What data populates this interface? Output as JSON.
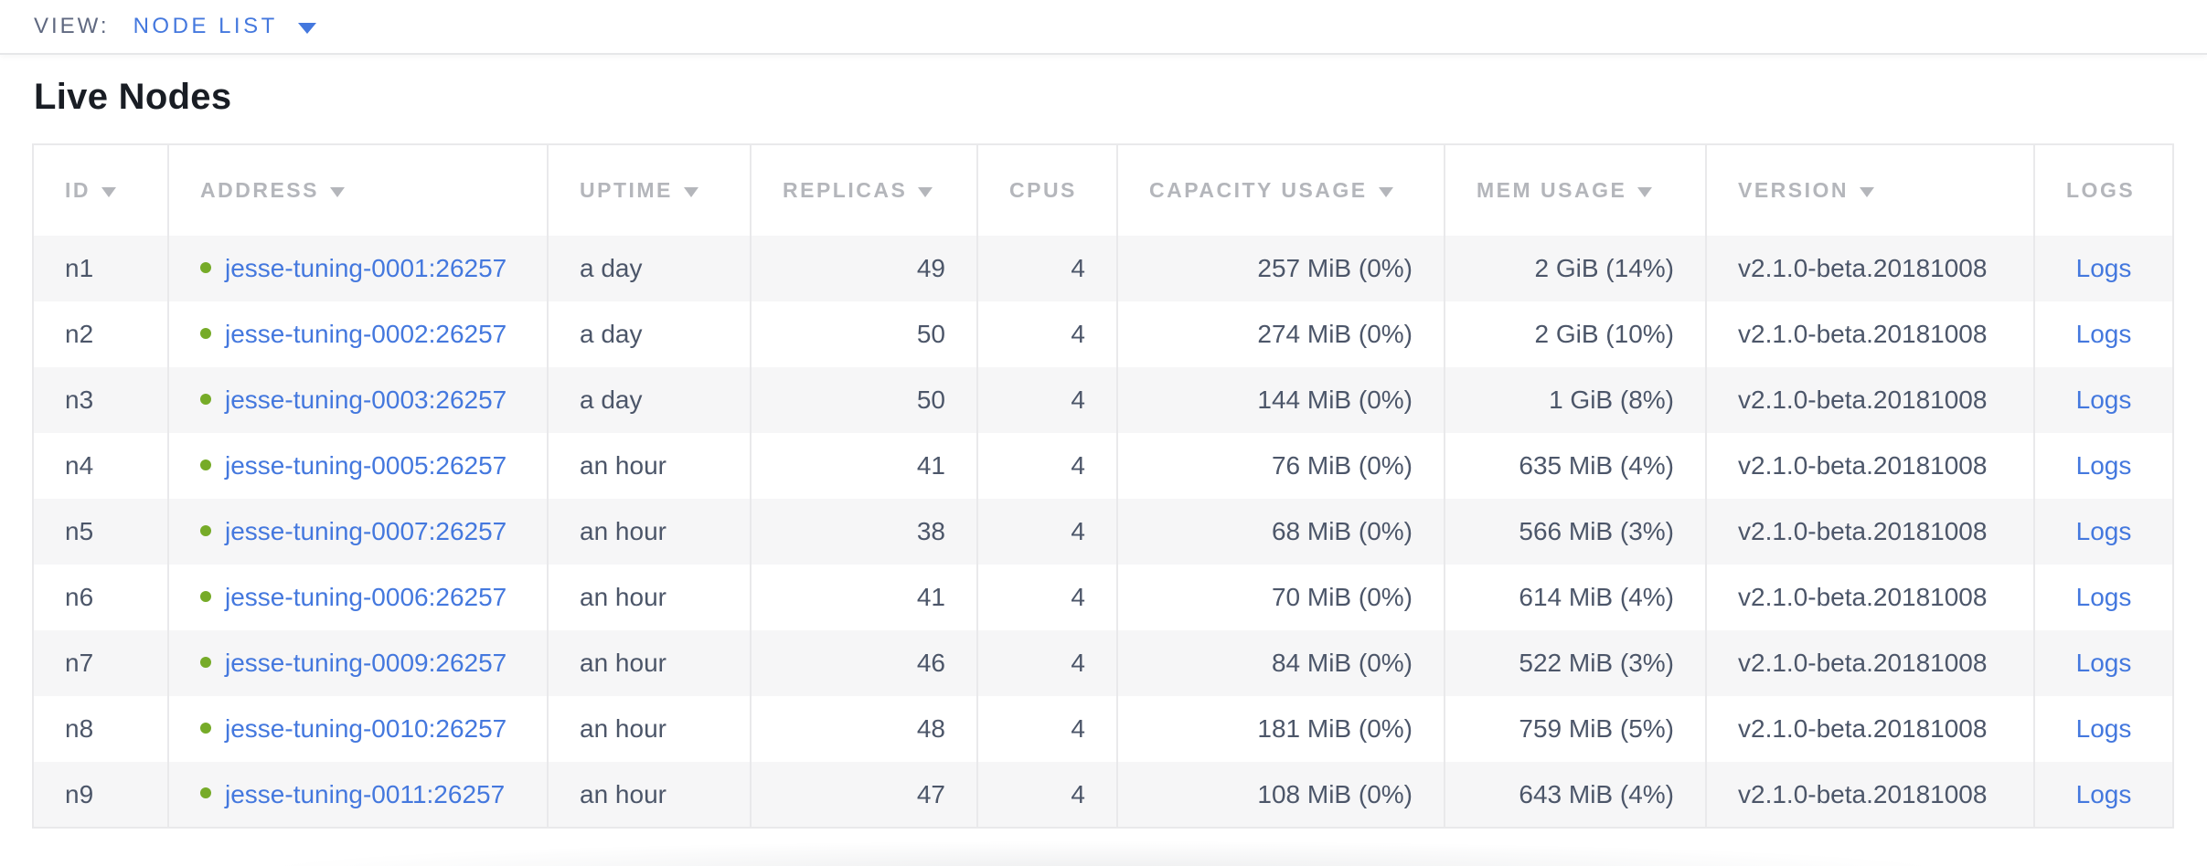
{
  "view_bar": {
    "label": "VIEW:",
    "selected": "NODE LIST"
  },
  "page": {
    "title": "Live Nodes"
  },
  "table": {
    "columns": [
      {
        "key": "id",
        "label": "ID",
        "sortable": true,
        "align": "left"
      },
      {
        "key": "address",
        "label": "ADDRESS",
        "sortable": true,
        "align": "left"
      },
      {
        "key": "uptime",
        "label": "UPTIME",
        "sortable": true,
        "align": "left"
      },
      {
        "key": "replicas",
        "label": "REPLICAS",
        "sortable": true,
        "align": "right"
      },
      {
        "key": "cpus",
        "label": "CPUS",
        "sortable": false,
        "align": "right"
      },
      {
        "key": "capacity_usage",
        "label": "CAPACITY USAGE",
        "sortable": true,
        "align": "right"
      },
      {
        "key": "mem_usage",
        "label": "MEM USAGE",
        "sortable": true,
        "align": "right"
      },
      {
        "key": "version",
        "label": "VERSION",
        "sortable": true,
        "align": "left"
      },
      {
        "key": "logs",
        "label": "LOGS",
        "sortable": false,
        "align": "center"
      }
    ],
    "rows": [
      {
        "id": "n1",
        "address": "jesse-tuning-0001:26257",
        "uptime": "a day",
        "replicas": "49",
        "cpus": "4",
        "capacity_usage": "257 MiB (0%)",
        "mem_usage": "2 GiB (14%)",
        "version": "v2.1.0-beta.20181008",
        "logs": "Logs"
      },
      {
        "id": "n2",
        "address": "jesse-tuning-0002:26257",
        "uptime": "a day",
        "replicas": "50",
        "cpus": "4",
        "capacity_usage": "274 MiB (0%)",
        "mem_usage": "2 GiB (10%)",
        "version": "v2.1.0-beta.20181008",
        "logs": "Logs"
      },
      {
        "id": "n3",
        "address": "jesse-tuning-0003:26257",
        "uptime": "a day",
        "replicas": "50",
        "cpus": "4",
        "capacity_usage": "144 MiB (0%)",
        "mem_usage": "1 GiB (8%)",
        "version": "v2.1.0-beta.20181008",
        "logs": "Logs"
      },
      {
        "id": "n4",
        "address": "jesse-tuning-0005:26257",
        "uptime": "an hour",
        "replicas": "41",
        "cpus": "4",
        "capacity_usage": "76 MiB (0%)",
        "mem_usage": "635 MiB (4%)",
        "version": "v2.1.0-beta.20181008",
        "logs": "Logs"
      },
      {
        "id": "n5",
        "address": "jesse-tuning-0007:26257",
        "uptime": "an hour",
        "replicas": "38",
        "cpus": "4",
        "capacity_usage": "68 MiB (0%)",
        "mem_usage": "566 MiB (3%)",
        "version": "v2.1.0-beta.20181008",
        "logs": "Logs"
      },
      {
        "id": "n6",
        "address": "jesse-tuning-0006:26257",
        "uptime": "an hour",
        "replicas": "41",
        "cpus": "4",
        "capacity_usage": "70 MiB (0%)",
        "mem_usage": "614 MiB (4%)",
        "version": "v2.1.0-beta.20181008",
        "logs": "Logs"
      },
      {
        "id": "n7",
        "address": "jesse-tuning-0009:26257",
        "uptime": "an hour",
        "replicas": "46",
        "cpus": "4",
        "capacity_usage": "84 MiB (0%)",
        "mem_usage": "522 MiB (3%)",
        "version": "v2.1.0-beta.20181008",
        "logs": "Logs"
      },
      {
        "id": "n8",
        "address": "jesse-tuning-0010:26257",
        "uptime": "an hour",
        "replicas": "48",
        "cpus": "4",
        "capacity_usage": "181 MiB (0%)",
        "mem_usage": "759 MiB (5%)",
        "version": "v2.1.0-beta.20181008",
        "logs": "Logs"
      },
      {
        "id": "n9",
        "address": "jesse-tuning-0011:26257",
        "uptime": "an hour",
        "replicas": "47",
        "cpus": "4",
        "capacity_usage": "108 MiB (0%)",
        "mem_usage": "643 MiB (4%)",
        "version": "v2.1.0-beta.20181008",
        "logs": "Logs"
      }
    ]
  },
  "colors": {
    "link_blue": "#4478de",
    "status_live_green": "#76ab28"
  }
}
